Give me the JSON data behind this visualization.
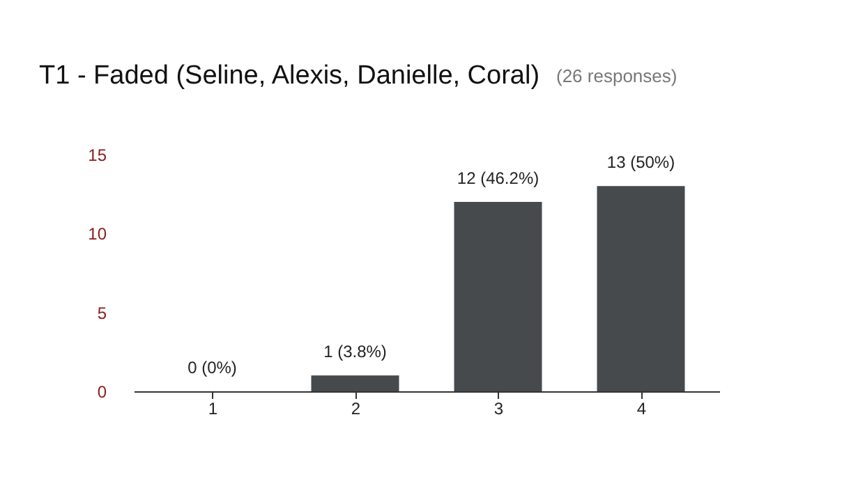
{
  "chart_data": {
    "type": "bar",
    "title": "T1 - Faded (Seline, Alexis, Danielle, Coral)",
    "subtitle": "(26 responses)",
    "categories": [
      "1",
      "2",
      "3",
      "4"
    ],
    "values": [
      0,
      1,
      12,
      13
    ],
    "color": "#464a4d",
    "value_labels": [
      "0 (0%)",
      "1 (3.8%)",
      "12 (46.2%)",
      "13 (50%)"
    ],
    "ylim": [
      0,
      15
    ],
    "yticks": [
      0,
      5,
      10,
      15
    ],
    "grid": false
  }
}
